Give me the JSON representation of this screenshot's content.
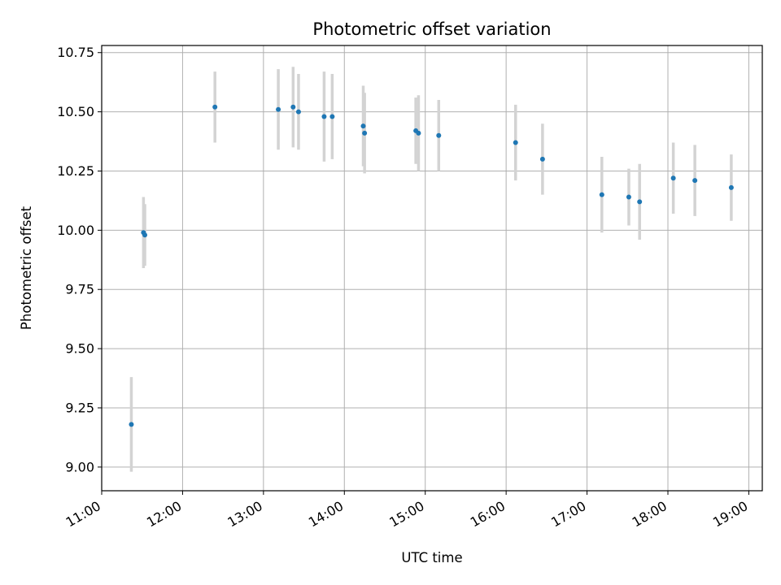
{
  "chart_data": {
    "type": "scatter",
    "title": "Photometric offset variation",
    "xlabel": "UTC time",
    "ylabel": "Photometric offset",
    "x_tick_labels": [
      "11:00",
      "12:00",
      "13:00",
      "14:00",
      "15:00",
      "16:00",
      "17:00",
      "18:00",
      "19:00"
    ],
    "y_tick_labels": [
      "9.00",
      "9.25",
      "9.50",
      "9.75",
      "10.00",
      "10.25",
      "10.50",
      "10.75"
    ],
    "xlim": [
      "11:00",
      "19:10"
    ],
    "ylim": [
      8.9,
      10.78
    ],
    "grid": true,
    "colors": {
      "points": "#1f77b4",
      "errorbars": "#d3d3d3",
      "grid": "#b0b0b0"
    },
    "points": [
      {
        "x": "11:22",
        "y": 9.18,
        "yerr": 0.2
      },
      {
        "x": "11:31",
        "y": 9.99,
        "yerr": 0.15
      },
      {
        "x": "11:32",
        "y": 9.98,
        "yerr": 0.13
      },
      {
        "x": "12:24",
        "y": 10.52,
        "yerr": 0.15
      },
      {
        "x": "13:11",
        "y": 10.51,
        "yerr": 0.17
      },
      {
        "x": "13:22",
        "y": 10.52,
        "yerr": 0.17
      },
      {
        "x": "13:26",
        "y": 10.5,
        "yerr": 0.16
      },
      {
        "x": "13:45",
        "y": 10.48,
        "yerr": 0.19
      },
      {
        "x": "13:51",
        "y": 10.48,
        "yerr": 0.18
      },
      {
        "x": "14:14",
        "y": 10.44,
        "yerr": 0.17
      },
      {
        "x": "14:15",
        "y": 10.41,
        "yerr": 0.17
      },
      {
        "x": "14:53",
        "y": 10.42,
        "yerr": 0.14
      },
      {
        "x": "14:55",
        "y": 10.41,
        "yerr": 0.16
      },
      {
        "x": "15:10",
        "y": 10.4,
        "yerr": 0.15
      },
      {
        "x": "16:07",
        "y": 10.37,
        "yerr": 0.16
      },
      {
        "x": "16:27",
        "y": 10.3,
        "yerr": 0.15
      },
      {
        "x": "17:11",
        "y": 10.15,
        "yerr": 0.16
      },
      {
        "x": "17:31",
        "y": 10.14,
        "yerr": 0.12
      },
      {
        "x": "17:39",
        "y": 10.12,
        "yerr": 0.16
      },
      {
        "x": "18:04",
        "y": 10.22,
        "yerr": 0.15
      },
      {
        "x": "18:20",
        "y": 10.21,
        "yerr": 0.15
      },
      {
        "x": "18:47",
        "y": 10.18,
        "yerr": 0.14
      }
    ]
  }
}
